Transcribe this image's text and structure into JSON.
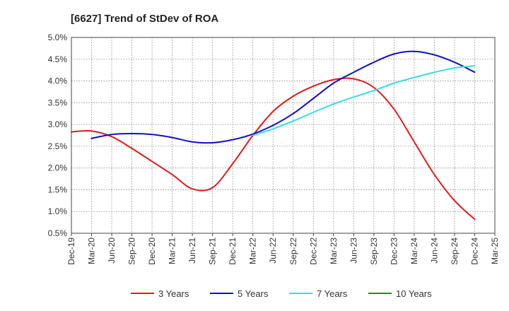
{
  "chart_data": {
    "type": "line",
    "title": "[6627]  Trend of StDev of ROA",
    "xlabel": "",
    "ylabel": "",
    "x": [
      "Dec-19",
      "Mar-20",
      "Jun-20",
      "Sep-20",
      "Dec-20",
      "Mar-21",
      "Jun-21",
      "Sep-21",
      "Dec-21",
      "Mar-22",
      "Jun-22",
      "Sep-22",
      "Dec-22",
      "Mar-23",
      "Jun-23",
      "Sep-23",
      "Dec-23",
      "Mar-24",
      "Jun-24",
      "Sep-24",
      "Dec-24",
      "Mar-25"
    ],
    "ylim": [
      0.5,
      5.0
    ],
    "yticks": [
      "5.0%",
      "4.5%",
      "4.0%",
      "3.5%",
      "3.0%",
      "2.5%",
      "2.0%",
      "1.5%",
      "1.0%",
      "0.5%"
    ],
    "ytick_values": [
      5.0,
      4.5,
      4.0,
      3.5,
      3.0,
      2.5,
      2.0,
      1.5,
      1.0,
      0.5
    ],
    "grid": true,
    "legend_position": "bottom",
    "series": [
      {
        "name": "3 Years",
        "color": "#e31a1c",
        "values": [
          2.83,
          2.85,
          2.72,
          2.45,
          2.15,
          1.85,
          1.52,
          1.55,
          2.1,
          2.75,
          3.3,
          3.65,
          3.88,
          4.03,
          4.05,
          3.85,
          3.35,
          2.6,
          1.85,
          1.25,
          0.82,
          null
        ]
      },
      {
        "name": "5 Years",
        "color": "#1010cc",
        "values": [
          null,
          2.68,
          2.77,
          2.79,
          2.77,
          2.7,
          2.6,
          2.58,
          2.65,
          2.78,
          2.98,
          3.25,
          3.6,
          3.95,
          4.2,
          4.43,
          4.62,
          4.68,
          4.6,
          4.43,
          4.2,
          null
        ]
      },
      {
        "name": "7 Years",
        "color": "#33e0e6",
        "values": [
          null,
          null,
          null,
          null,
          null,
          null,
          null,
          null,
          null,
          2.75,
          2.9,
          3.08,
          3.28,
          3.47,
          3.63,
          3.78,
          3.95,
          4.08,
          4.2,
          4.3,
          4.35,
          null
        ]
      },
      {
        "name": "10 Years",
        "color": "#228b22",
        "values": [
          null,
          null,
          null,
          null,
          null,
          null,
          null,
          null,
          null,
          null,
          null,
          null,
          null,
          null,
          null,
          null,
          null,
          null,
          null,
          null,
          null,
          null
        ]
      }
    ]
  }
}
